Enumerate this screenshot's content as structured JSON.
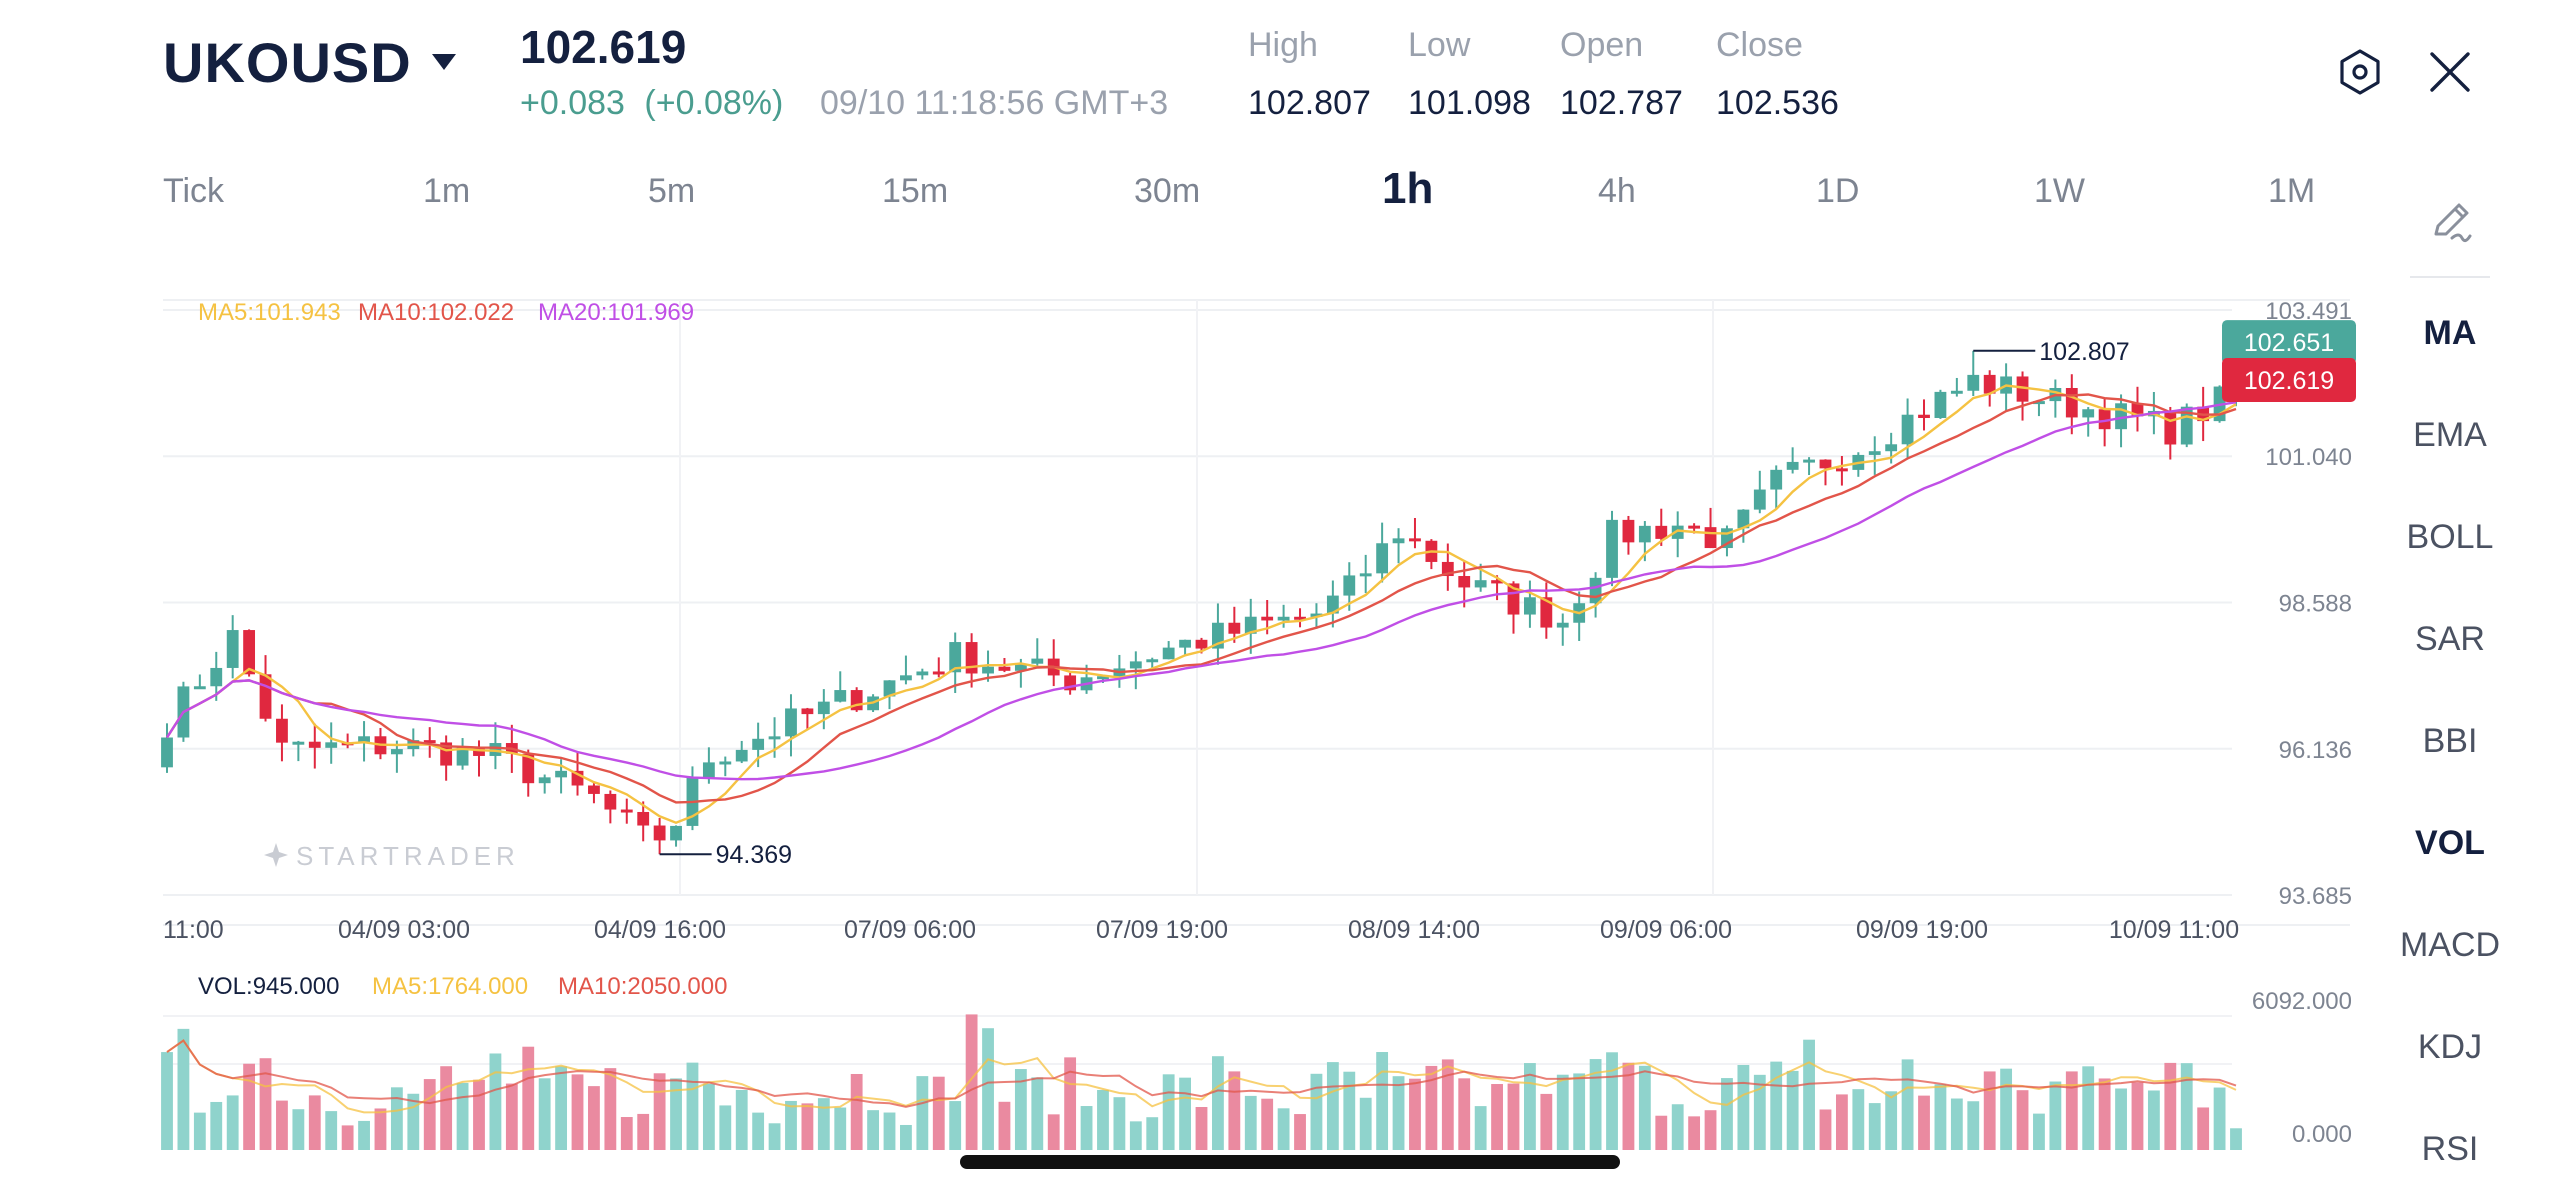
{
  "header": {
    "symbol": "UKOUSD",
    "price": "102.619",
    "change": "+0.083",
    "change_pct": "(+0.08%)",
    "datetime": "09/10 11:18:56 GMT+3",
    "stats": [
      {
        "label": "High",
        "value": "102.807"
      },
      {
        "label": "Low",
        "value": "101.098"
      },
      {
        "label": "Open",
        "value": "102.787"
      },
      {
        "label": "Close",
        "value": "102.536"
      }
    ],
    "icons": {
      "settings": "hexagon-settings-icon",
      "close": "close-icon",
      "caret": "caret-down-icon"
    }
  },
  "timeframes": {
    "items": [
      "Tick",
      "1m",
      "5m",
      "15m",
      "30m",
      "1h",
      "4h",
      "1D",
      "1W",
      "1M"
    ],
    "active": "1h"
  },
  "indicators": {
    "items": [
      "MA",
      "EMA",
      "BOLL",
      "SAR",
      "BBI",
      "VOL",
      "MACD",
      "KDJ",
      "RSI"
    ],
    "active": [
      "MA",
      "VOL"
    ],
    "draw_icon": "pencil-icon"
  },
  "colors": {
    "up": "#4ba89c",
    "down": "#e0283f",
    "ma5": "#f5c242",
    "ma10": "#e2554a",
    "ma20": "#c04fe6",
    "vol_up": "#8fd3cc",
    "vol_down": "#ea8aa0",
    "text_dark": "#14203f",
    "text_muted": "#9aa1ad"
  },
  "chart_data": {
    "type": "candlestick",
    "ma_legend": {
      "ma5": "MA5:101.943",
      "ma10": "MA10:102.022",
      "ma20": "MA20:101.969"
    },
    "y_ticks": [
      "103.491",
      "101.040",
      "98.588",
      "96.136",
      "93.685"
    ],
    "ylim": [
      93.685,
      103.491
    ],
    "x_ticks": [
      "11:00",
      "04/09 03:00",
      "04/09 16:00",
      "07/09 06:00",
      "07/09 19:00",
      "08/09 14:00",
      "09/09 06:00",
      "09/09 19:00",
      "10/09 11:00"
    ],
    "high_marker": "102.807",
    "low_marker": "94.369",
    "high_value": 102.807,
    "low_value": 94.369,
    "price_tags": [
      {
        "label": "102.651",
        "value": 102.651,
        "color": "#4ba89c"
      },
      {
        "label": "102.619",
        "value": 102.619,
        "color": "#e0283f"
      }
    ],
    "watermark": "STARTRADER",
    "candle_count": 100,
    "close_path": [
      [
        0,
        96.6
      ],
      [
        4,
        98.0
      ],
      [
        7,
        96.1
      ],
      [
        14,
        96.2
      ],
      [
        20,
        96.0
      ],
      [
        26,
        95.3
      ],
      [
        30,
        94.4
      ],
      [
        33,
        96.0
      ],
      [
        40,
        96.8
      ],
      [
        48,
        97.7
      ],
      [
        55,
        97.3
      ],
      [
        62,
        97.9
      ],
      [
        70,
        98.4
      ],
      [
        72,
        98.8
      ],
      [
        75,
        99.8
      ],
      [
        79,
        98.9
      ],
      [
        85,
        98.3
      ],
      [
        88,
        99.7
      ],
      [
        92,
        99.9
      ],
      [
        95,
        99.6
      ],
      [
        98,
        100.6
      ],
      [
        103,
        101.2
      ],
      [
        110,
        102.3
      ],
      [
        116,
        101.9
      ],
      [
        122,
        101.5
      ],
      [
        126,
        102.1
      ]
    ],
    "volume": {
      "legend": {
        "vol": "VOL:945.000",
        "ma5": "MA5:1764.000",
        "ma10": "MA10:2050.000"
      },
      "y_ticks": [
        "6092.000",
        "0.000"
      ],
      "ylim": [
        0,
        6092
      ]
    }
  }
}
